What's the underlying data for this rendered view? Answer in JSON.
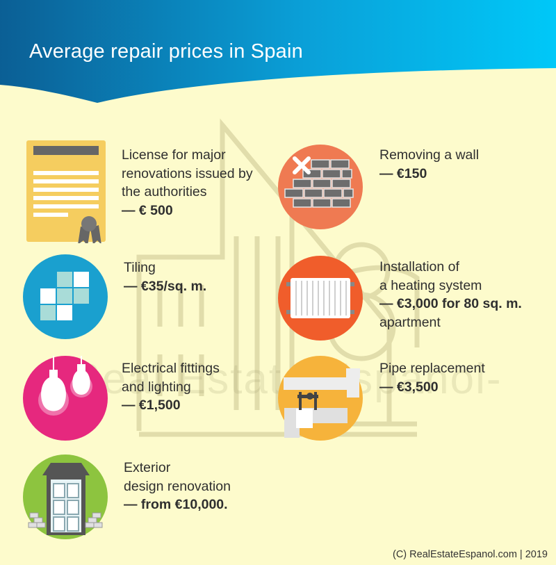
{
  "title": "Average repair prices in Spain",
  "watermark": "-Real Estate Espanol-",
  "colors": {
    "header_dark": "#0a6aa0",
    "header_light": "#00c4f4",
    "background": "#fdfbcc"
  },
  "items": [
    {
      "icon": "license-document-icon",
      "line1": "License for major",
      "line2": "renovations issued by",
      "line3": "the authorities",
      "line4": "— € 500"
    },
    {
      "icon": "brick-wall-icon",
      "line1": "Removing a wall",
      "line2": "— €150"
    },
    {
      "icon": "tiles-icon",
      "line1": "Tiling",
      "line2": "— €35/sq. m."
    },
    {
      "icon": "radiator-icon",
      "line1": "Installation of",
      "line2": "a heating system",
      "line3": "— €3,000 for 80 sq. m.",
      "line4": "apartment"
    },
    {
      "icon": "light-bulbs-icon",
      "line1": "Electrical fittings",
      "line2": "and lighting",
      "line3": "— €1,500"
    },
    {
      "icon": "pipe-valve-icon",
      "line1": "Pipe replacement",
      "line2": "— €3,500"
    },
    {
      "icon": "house-window-icon",
      "line1": "Exterior",
      "line2": "design renovation",
      "line3": "— from €10,000."
    }
  ],
  "footer": "(C) RealEstateEspanol.com | 2019"
}
